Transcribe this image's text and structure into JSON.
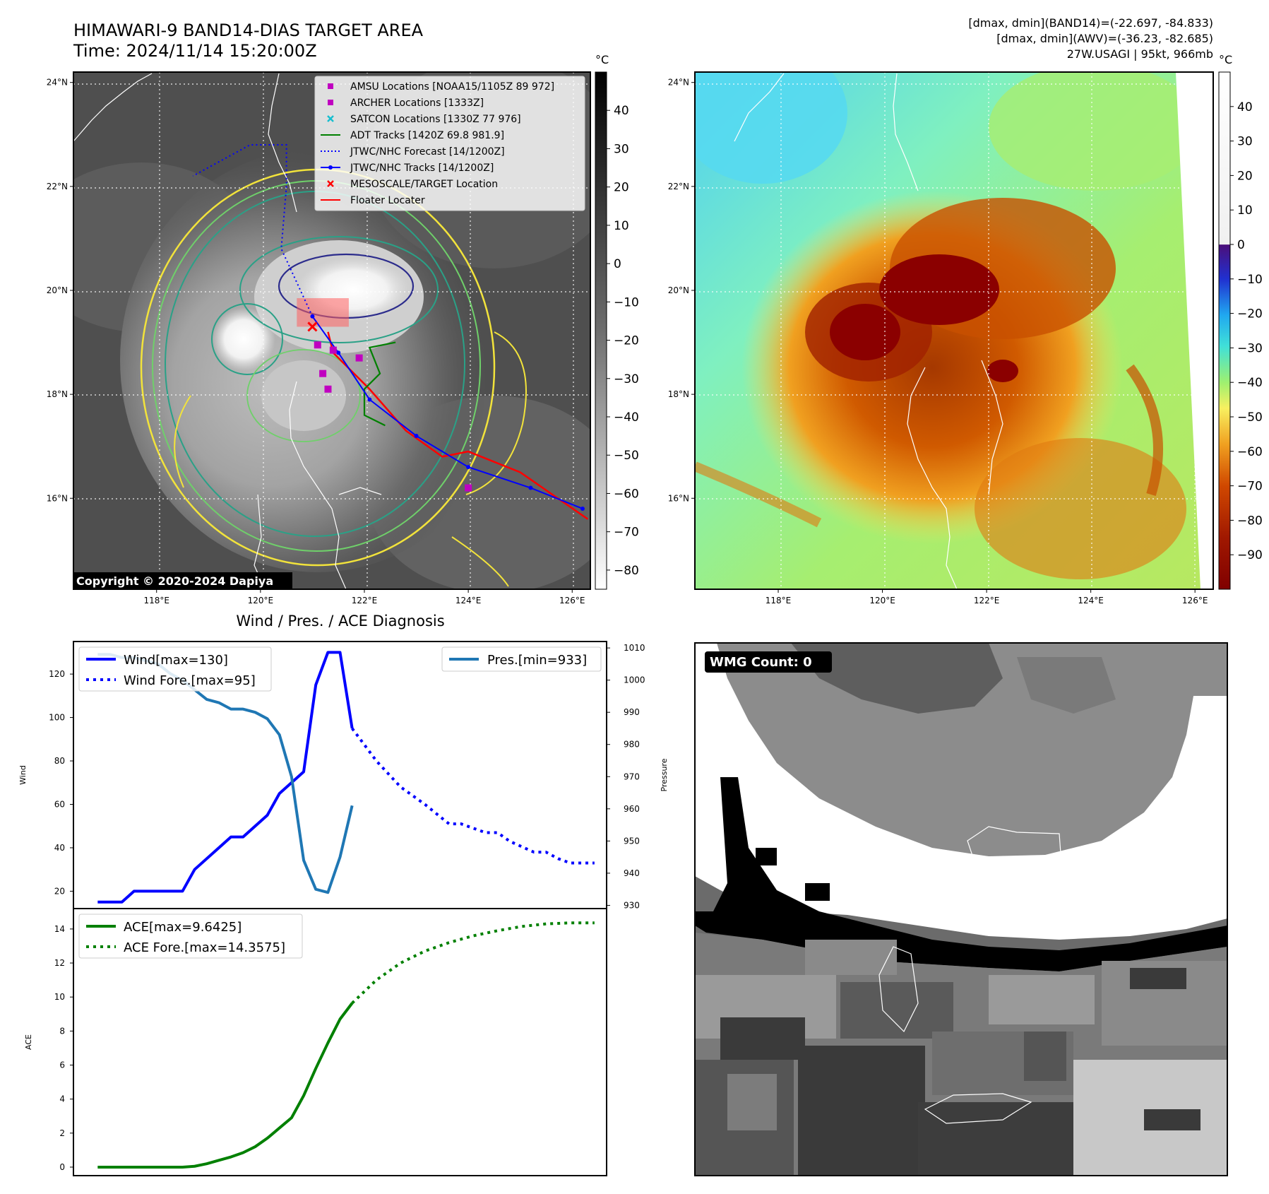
{
  "header": {
    "title_line1": "HIMAWARI-9 BAND14-DIAS TARGET AREA",
    "title_line2": "Time: 2024/11/14 15:20:00Z",
    "right_line1": "[dmax, dmin](BAND14)=(-22.697, -84.833)",
    "right_line2": "[dmax, dmin](AWV)=(-36.23, -82.685)",
    "right_line3": "27W.USAGI | 95kt, 966mb"
  },
  "copyright": "Copyright © 2020-2024 Dapiya",
  "wmg_label": "WMG Count: 0",
  "colors": {
    "wind": "#0000ff",
    "pressure": "#1f77b4",
    "ace": "#008000",
    "forecast_track": "#0000ff",
    "floater": "#ff0000",
    "amsu": "#c000c0",
    "satcon": "#17becf"
  },
  "chart_data": [
    {
      "type": "map",
      "name": "band14-map",
      "lon_ticks": [
        "118°E",
        "120°E",
        "122°E",
        "124°E",
        "126°E"
      ],
      "lat_ticks": [
        "24°N",
        "22°N",
        "20°N",
        "18°N",
        "16°N"
      ],
      "lon_range": [
        116.4,
        126.35
      ],
      "lat_range": [
        14.25,
        24.2
      ],
      "colorbar": {
        "unit": "°C",
        "ticks": [
          "40",
          "30",
          "20",
          "10",
          "0",
          "−10",
          "−20",
          "−30",
          "−40",
          "−50",
          "−60",
          "−70",
          "−80"
        ],
        "range": [
          -85,
          50
        ]
      },
      "legend": [
        {
          "label": "AMSU Locations [NOAA15/1105Z 89 972]",
          "marker": "square",
          "color": "#c000c0"
        },
        {
          "label": "ARCHER Locations [1333Z]",
          "marker": "square",
          "color": "#c000c0"
        },
        {
          "label": "SATCON Locations [1330Z 77 976]",
          "marker": "x",
          "color": "#17becf"
        },
        {
          "label": "ADT Tracks [1420Z 69.8 981.9]",
          "marker": "line",
          "color": "#008000"
        },
        {
          "label": "JTWC/NHC Forecast [14/1200Z]",
          "marker": "dotted",
          "color": "#0000ff"
        },
        {
          "label": "JTWC/NHC Tracks [14/1200Z]",
          "marker": "line-dot",
          "color": "#0000ff"
        },
        {
          "label": "MESOSCALE/TARGET Location",
          "marker": "x",
          "color": "#ff0000"
        },
        {
          "label": "Floater Locater",
          "marker": "line",
          "color": "#ff0000"
        }
      ],
      "jtwc_track": [
        [
          126.2,
          15.8
        ],
        [
          125.2,
          16.2
        ],
        [
          124.0,
          16.6
        ],
        [
          123.0,
          17.2
        ],
        [
          122.1,
          17.9
        ],
        [
          121.5,
          18.8
        ],
        [
          121.0,
          19.5
        ]
      ],
      "jtwc_forecast": [
        [
          121.0,
          19.5
        ],
        [
          120.4,
          20.8
        ],
        [
          120.5,
          22.0
        ],
        [
          120.5,
          22.8
        ],
        [
          119.8,
          22.8
        ],
        [
          118.7,
          22.2
        ]
      ],
      "adt_track": [
        [
          122.4,
          17.4
        ],
        [
          122.0,
          17.6
        ],
        [
          122.0,
          18.1
        ],
        [
          122.3,
          18.4
        ],
        [
          122.1,
          18.9
        ],
        [
          122.6,
          19.0
        ]
      ],
      "floater_track": [
        [
          126.3,
          15.6
        ],
        [
          125.0,
          16.5
        ],
        [
          124.0,
          16.9
        ],
        [
          123.5,
          16.8
        ],
        [
          122.8,
          17.3
        ],
        [
          122.1,
          18.1
        ],
        [
          121.4,
          18.8
        ],
        [
          121.3,
          19.2
        ]
      ],
      "amsu_points": [
        [
          121.1,
          18.95
        ],
        [
          121.4,
          18.85
        ],
        [
          121.3,
          18.1
        ],
        [
          121.2,
          18.4
        ],
        [
          124.0,
          16.2
        ],
        [
          121.9,
          18.7
        ]
      ],
      "target_point": [
        121.0,
        19.3
      ],
      "floater_box": [
        [
          120.7,
          19.3
        ],
        [
          121.7,
          19.85
        ]
      ]
    },
    {
      "type": "map",
      "name": "awv-map",
      "lon_ticks": [
        "118°E",
        "120°E",
        "122°E",
        "124°E",
        "126°E"
      ],
      "lat_ticks": [
        "24°N",
        "22°N",
        "20°N",
        "18°N",
        "16°N"
      ],
      "lon_range": [
        116.4,
        126.35
      ],
      "lat_range": [
        14.25,
        24.2
      ],
      "colorbar": {
        "unit": "°C",
        "ticks": [
          "40",
          "30",
          "20",
          "10",
          "0",
          "−10",
          "−20",
          "−30",
          "−40",
          "−50",
          "−60",
          "−70",
          "−80",
          "−90"
        ],
        "range": [
          -100,
          50
        ]
      }
    },
    {
      "type": "line",
      "name": "wind-pressure",
      "title": "Wind / Pres. / ACE Diagnosis",
      "ylabel": "Wind",
      "y2label": "Pressure",
      "ylim": [
        12,
        135
      ],
      "y2lim": [
        929,
        1012
      ],
      "xlim": [
        -1,
        43
      ],
      "yticks": [
        20,
        40,
        60,
        80,
        100,
        120
      ],
      "y2ticks": [
        930,
        940,
        950,
        960,
        970,
        980,
        990,
        1000,
        1010
      ],
      "series": [
        {
          "name": "Wind[max=130]",
          "style": "solid",
          "color": "#0000ff",
          "x": [
            1,
            3,
            4,
            6,
            8,
            9,
            11,
            12,
            13,
            15,
            16,
            18,
            19,
            20,
            21,
            22
          ],
          "values": [
            15,
            15,
            20,
            20,
            20,
            30,
            40,
            45,
            45,
            55,
            65,
            75,
            115,
            130,
            130,
            95
          ]
        },
        {
          "name": "Wind Fore.[max=95]",
          "style": "dotted",
          "color": "#0000ff",
          "x": [
            22,
            24,
            26,
            28,
            30,
            31,
            33,
            34,
            35,
            37,
            38,
            39,
            40,
            41,
            42
          ],
          "values": [
            95,
            80,
            68,
            60,
            51,
            51,
            47,
            47,
            43,
            38,
            38,
            35,
            33,
            33,
            33
          ]
        },
        {
          "name": "Pres.[min=933]",
          "style": "solid",
          "color": "#1f77b4",
          "x": [
            1,
            2,
            3,
            4,
            5,
            6,
            7,
            8,
            9,
            10,
            11,
            12,
            13,
            14,
            15,
            16,
            17,
            18,
            19,
            20,
            21,
            22
          ],
          "values": [
            1008,
            1008,
            1007,
            1007,
            1006,
            1005,
            1002,
            1000,
            997,
            994,
            993,
            991,
            991,
            990,
            988,
            983,
            970,
            944,
            935,
            934,
            945,
            961
          ]
        }
      ]
    },
    {
      "type": "line",
      "name": "ace",
      "ylabel": "ACE",
      "ylim": [
        -0.5,
        15.2
      ],
      "xlim": [
        -1,
        43
      ],
      "yticks": [
        0,
        2,
        4,
        6,
        8,
        10,
        12,
        14
      ],
      "series": [
        {
          "name": "ACE[max=9.6425]",
          "style": "solid",
          "color": "#008000",
          "x": [
            1,
            3,
            5,
            7,
            8,
            9,
            10,
            11,
            12,
            13,
            14,
            15,
            16,
            17,
            18,
            19,
            20,
            21,
            22
          ],
          "values": [
            0,
            0,
            0,
            0,
            0,
            0.05,
            0.2,
            0.4,
            0.6,
            0.85,
            1.2,
            1.7,
            2.3,
            2.9,
            4.2,
            5.8,
            7.3,
            8.7,
            9.64
          ]
        },
        {
          "name": "ACE Fore.[max=14.3575]",
          "style": "dotted",
          "color": "#008000",
          "x": [
            22,
            24,
            26,
            28,
            30,
            32,
            34,
            36,
            38,
            40,
            42
          ],
          "values": [
            9.64,
            11.0,
            12.0,
            12.7,
            13.2,
            13.6,
            13.9,
            14.15,
            14.3,
            14.36,
            14.36
          ]
        }
      ]
    }
  ]
}
